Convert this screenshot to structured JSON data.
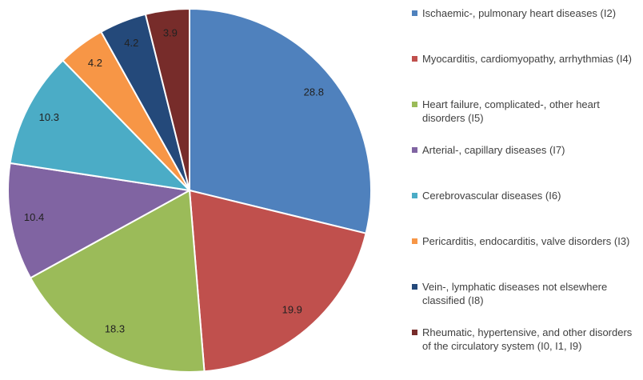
{
  "chart_data": {
    "type": "pie",
    "categories": [
      "Ischaemic-, pulmonary heart diseases (I2)",
      "Myocarditis, cardiomyopathy, arrhythmias (I4)",
      "Heart failure, complicated-, other heart disorders (I5)",
      "Arterial-, capillary diseases (I7)",
      "Cerebrovascular diseases (I6)",
      "Pericarditis, endocarditis, valve disorders (I3)",
      "Vein-, lymphatic diseases not elsewhere classified (I8)",
      "Rheumatic, hypertensive, and other disorders of the circulatory system (I0, I1, I9)"
    ],
    "values": [
      28.8,
      19.9,
      18.3,
      10.4,
      10.3,
      4.2,
      4.2,
      3.9
    ],
    "colors": [
      "#4f81bd",
      "#c0504d",
      "#9bbb59",
      "#8064a2",
      "#4bacc6",
      "#f79646",
      "#24497a",
      "#772c2a"
    ],
    "legend": "right"
  }
}
